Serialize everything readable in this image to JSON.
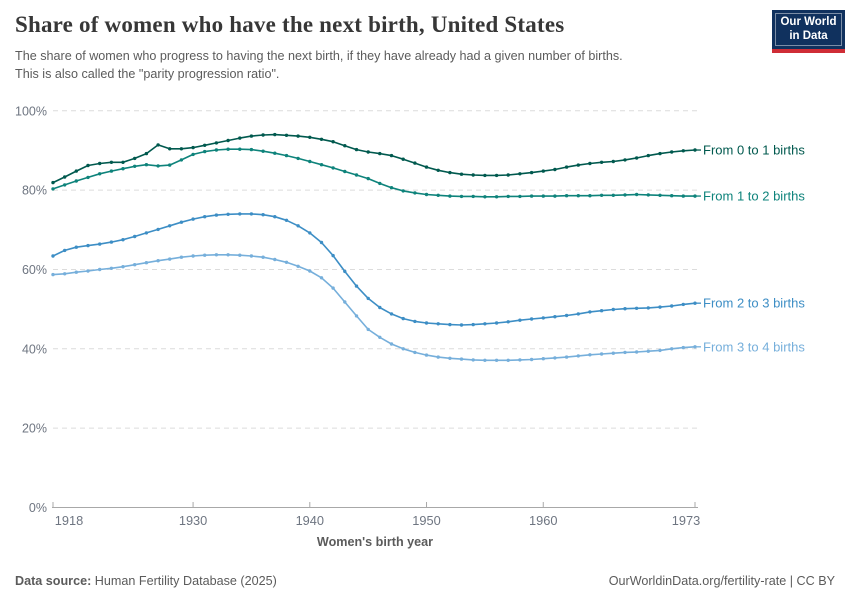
{
  "header": {
    "title": "Share of women who have the next birth, United States",
    "subtitle_line1": "The share of women who progress to having the next birth, if they have already had a given number of births.",
    "subtitle_line2": "This is also called the \"parity progression ratio\".",
    "logo": {
      "line1": "Our World",
      "line2": "in Data",
      "bg_color": "#10315e",
      "stripe_color": "#cf2d36"
    }
  },
  "chart_data": {
    "type": "line",
    "title": "Share of women who have the next birth, United States",
    "xlabel": "Women's birth year",
    "ylabel": "",
    "x_range": [
      1918,
      1973
    ],
    "ylim": [
      0,
      100
    ],
    "y_ticks": [
      0,
      20,
      40,
      60,
      80,
      100
    ],
    "y_tick_suffix": "%",
    "x_ticks": [
      1918,
      1930,
      1940,
      1950,
      1960,
      1973
    ],
    "grid": "horizontal-dashed",
    "legend_position": "right-inline-labels",
    "grid_color": "#dcdcdc",
    "axis_color": "#a8a8a8",
    "tick_label_color": "#6e7581",
    "axis_title_color": "#5b5b5b",
    "x": [
      1918,
      1919,
      1920,
      1921,
      1922,
      1923,
      1924,
      1925,
      1926,
      1927,
      1928,
      1929,
      1930,
      1931,
      1932,
      1933,
      1934,
      1935,
      1936,
      1937,
      1938,
      1939,
      1940,
      1941,
      1942,
      1943,
      1944,
      1945,
      1946,
      1947,
      1948,
      1949,
      1950,
      1951,
      1952,
      1953,
      1954,
      1955,
      1956,
      1957,
      1958,
      1959,
      1960,
      1961,
      1962,
      1963,
      1964,
      1965,
      1966,
      1967,
      1968,
      1969,
      1970,
      1971,
      1972,
      1973
    ],
    "series": [
      {
        "name": "From 0 to 1 births",
        "color": "#00594e",
        "values": [
          81.9,
          83.3,
          84.8,
          86.2,
          86.7,
          87.0,
          87.0,
          88.0,
          89.2,
          91.4,
          90.4,
          90.4,
          90.7,
          91.3,
          91.9,
          92.5,
          93.1,
          93.6,
          93.9,
          94.0,
          93.8,
          93.6,
          93.3,
          92.8,
          92.2,
          91.2,
          90.2,
          89.6,
          89.2,
          88.7,
          87.8,
          86.8,
          85.8,
          85.0,
          84.4,
          84.0,
          83.8,
          83.7,
          83.7,
          83.8,
          84.1,
          84.4,
          84.8,
          85.2,
          85.8,
          86.3,
          86.7,
          87.0,
          87.2,
          87.6,
          88.1,
          88.7,
          89.2,
          89.6,
          89.9,
          90.1
        ]
      },
      {
        "name": "From 1 to 2 births",
        "color": "#0e837b",
        "values": [
          80.3,
          81.3,
          82.3,
          83.2,
          84.1,
          84.8,
          85.4,
          86.0,
          86.4,
          86.1,
          86.3,
          87.6,
          89.0,
          89.7,
          90.1,
          90.3,
          90.3,
          90.2,
          89.8,
          89.3,
          88.7,
          88.0,
          87.2,
          86.4,
          85.6,
          84.7,
          83.8,
          82.9,
          81.7,
          80.6,
          79.8,
          79.3,
          78.9,
          78.7,
          78.5,
          78.4,
          78.4,
          78.3,
          78.3,
          78.4,
          78.4,
          78.5,
          78.5,
          78.5,
          78.6,
          78.6,
          78.6,
          78.7,
          78.7,
          78.8,
          78.9,
          78.8,
          78.7,
          78.6,
          78.5,
          78.5
        ]
      },
      {
        "name": "From 2 to 3 births",
        "color": "#3d8ec5",
        "values": [
          63.4,
          64.8,
          65.6,
          66.0,
          66.4,
          66.9,
          67.5,
          68.3,
          69.2,
          70.1,
          71.0,
          71.9,
          72.7,
          73.3,
          73.7,
          73.9,
          74.0,
          74.0,
          73.8,
          73.3,
          72.4,
          71.0,
          69.2,
          66.8,
          63.5,
          59.5,
          55.8,
          52.7,
          50.4,
          48.8,
          47.6,
          46.9,
          46.5,
          46.3,
          46.1,
          46.0,
          46.1,
          46.3,
          46.5,
          46.8,
          47.2,
          47.5,
          47.8,
          48.1,
          48.4,
          48.8,
          49.3,
          49.6,
          49.9,
          50.1,
          50.2,
          50.3,
          50.5,
          50.8,
          51.2,
          51.5
        ]
      },
      {
        "name": "From 3 to 4 births",
        "color": "#76afdb",
        "values": [
          58.7,
          58.9,
          59.3,
          59.6,
          60.0,
          60.3,
          60.7,
          61.2,
          61.7,
          62.2,
          62.6,
          63.1,
          63.4,
          63.6,
          63.7,
          63.7,
          63.6,
          63.4,
          63.1,
          62.5,
          61.8,
          60.8,
          59.6,
          57.9,
          55.3,
          51.8,
          48.3,
          44.9,
          42.9,
          41.2,
          40.0,
          39.1,
          38.4,
          37.9,
          37.6,
          37.4,
          37.2,
          37.1,
          37.1,
          37.1,
          37.2,
          37.3,
          37.5,
          37.7,
          37.9,
          38.2,
          38.5,
          38.7,
          38.9,
          39.1,
          39.2,
          39.4,
          39.6,
          40.0,
          40.3,
          40.5
        ]
      }
    ]
  },
  "footer": {
    "source_label": "Data source:",
    "source_value": " Human Fertility Database (2025)",
    "credit": "OurWorldinData.org/fertility-rate | CC BY"
  }
}
